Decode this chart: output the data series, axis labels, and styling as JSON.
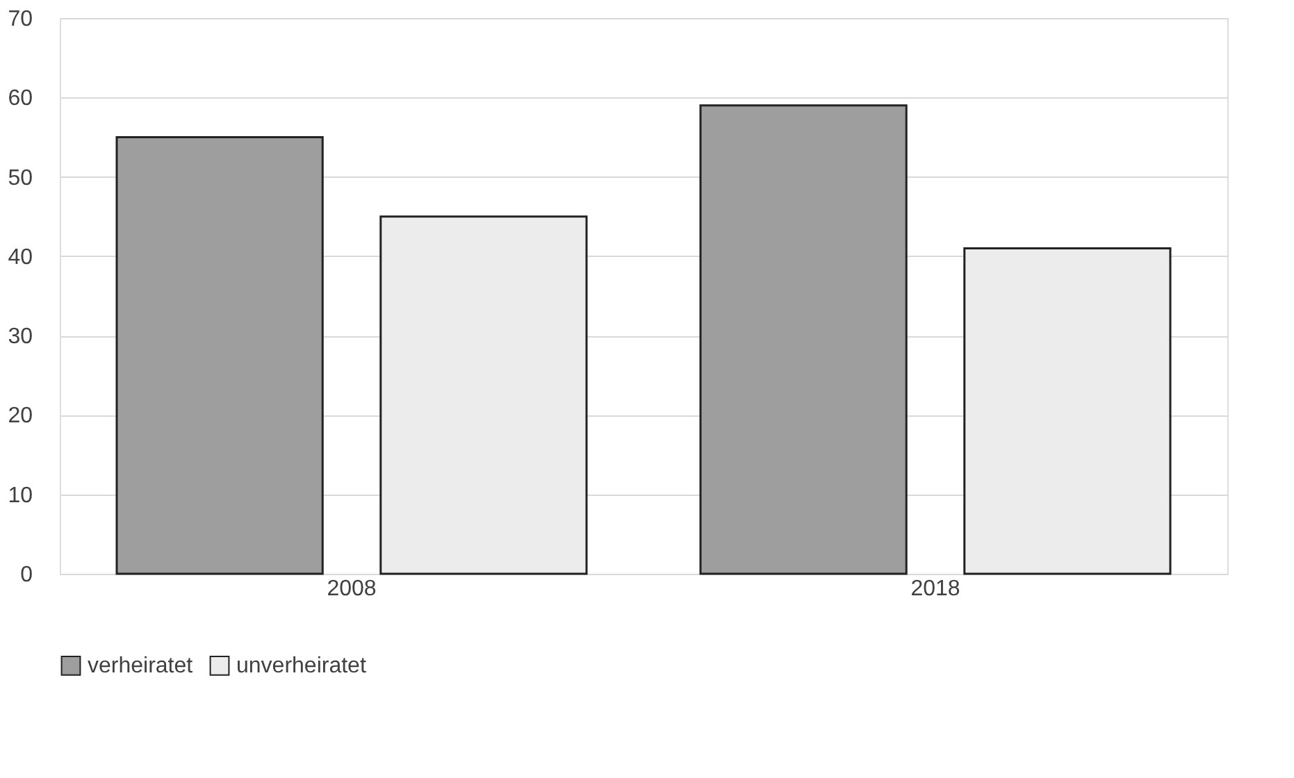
{
  "chart_data": {
    "type": "bar",
    "categories": [
      "2008",
      "2018"
    ],
    "series": [
      {
        "name": "verheiratet",
        "color": "#9e9e9e",
        "values": [
          55,
          59
        ]
      },
      {
        "name": "unverheiratet",
        "color": "#ececec",
        "values": [
          45,
          41
        ]
      }
    ],
    "ylim": [
      0,
      70
    ],
    "yticks": [
      0,
      10,
      20,
      30,
      40,
      50,
      60,
      70
    ],
    "grid": "y",
    "legend": "bottom"
  }
}
